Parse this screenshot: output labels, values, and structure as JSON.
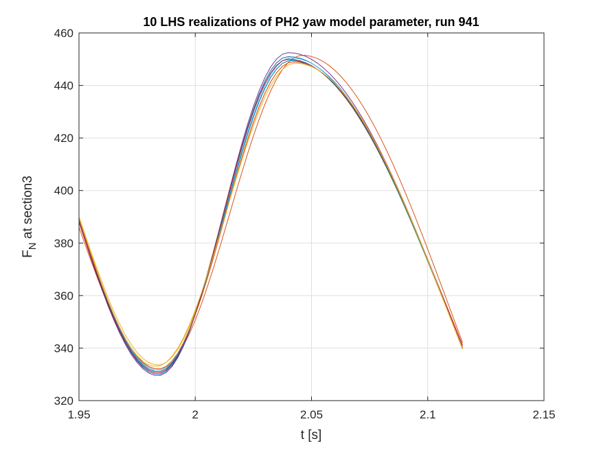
{
  "chart_data": {
    "type": "line",
    "title": "10 LHS realizations of PH2 yaw model parameter, run 941",
    "xlabel": "t [s]",
    "ylabel": {
      "main": "F",
      "sub": "N",
      "rest": " at section3"
    },
    "xlim": [
      1.95,
      2.15
    ],
    "ylim": [
      320,
      460
    ],
    "xticks": [
      1.95,
      2.0,
      2.05,
      2.1,
      2.15
    ],
    "xtick_labels": [
      "1.95",
      "2",
      "2.05",
      "2.1",
      "2.15"
    ],
    "yticks": [
      320,
      340,
      360,
      380,
      400,
      420,
      440,
      460
    ],
    "ytick_labels": [
      "320",
      "340",
      "360",
      "380",
      "400",
      "420",
      "440",
      "460"
    ],
    "grid": true,
    "x_range": [
      1.95,
      2.115
    ],
    "series": [
      {
        "color": "#0072BD",
        "y0": 389,
        "yMin": 330.0,
        "tMin": 1.984,
        "yPeak": 451.0,
        "tPeak": 2.04,
        "yEnd": 340
      },
      {
        "color": "#D95319",
        "y0": 386,
        "yMin": 332.0,
        "tMin": 1.984,
        "yPeak": 451.5,
        "tPeak": 2.046,
        "yEnd": 342
      },
      {
        "color": "#EDB120",
        "y0": 390,
        "yMin": 333.5,
        "tMin": 1.984,
        "yPeak": 449.0,
        "tPeak": 2.042,
        "yEnd": 339.5
      },
      {
        "color": "#7E2F8E",
        "y0": 388,
        "yMin": 329.5,
        "tMin": 1.984,
        "yPeak": 452.5,
        "tPeak": 2.04,
        "yEnd": 340
      },
      {
        "color": "#77AC30",
        "y0": 389,
        "yMin": 331.0,
        "tMin": 1.984,
        "yPeak": 450.0,
        "tPeak": 2.04,
        "yEnd": 340
      },
      {
        "color": "#4DBEEE",
        "y0": 389,
        "yMin": 331.5,
        "tMin": 1.984,
        "yPeak": 450.5,
        "tPeak": 2.041,
        "yEnd": 340
      },
      {
        "color": "#A2142F",
        "y0": 388,
        "yMin": 330.5,
        "tMin": 1.984,
        "yPeak": 450.0,
        "tPeak": 2.04,
        "yEnd": 341
      },
      {
        "color": "#0072BD",
        "y0": 389,
        "yMin": 331.0,
        "tMin": 1.984,
        "yPeak": 449.5,
        "tPeak": 2.041,
        "yEnd": 340
      },
      {
        "color": "#D95319",
        "y0": 389,
        "yMin": 332.0,
        "tMin": 1.984,
        "yPeak": 449.0,
        "tPeak": 2.042,
        "yEnd": 340
      },
      {
        "color": "#EDB120",
        "y0": 390,
        "yMin": 333.0,
        "tMin": 1.983,
        "yPeak": 448.5,
        "tPeak": 2.043,
        "yEnd": 339.5
      }
    ]
  }
}
